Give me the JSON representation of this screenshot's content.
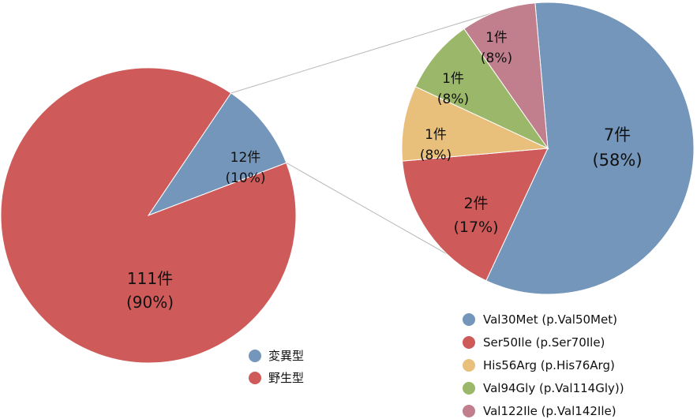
{
  "chart_data": [
    {
      "type": "pie",
      "title": "",
      "slices": [
        {
          "name": "変異型",
          "value": 12,
          "count_label": "12件",
          "pct_label": "(10%)",
          "color": "#7496BB"
        },
        {
          "name": "野生型",
          "value": 111,
          "count_label": "111件",
          "pct_label": "(90%)",
          "color": "#CF5A5A"
        }
      ],
      "legend": {
        "position": "bottom-right"
      }
    },
    {
      "type": "pie",
      "title": "",
      "slices": [
        {
          "name": "Val30Met (p.Val50Met)",
          "value": 7,
          "count_label": "7件",
          "pct_label": "(58%)",
          "color": "#7496BB"
        },
        {
          "name": "Ser50Ile (p.Ser70Ile)",
          "value": 2,
          "count_label": "2件",
          "pct_label": "(17%)",
          "color": "#CF5A5A"
        },
        {
          "name": "His56Arg (p.His76Arg)",
          "value": 1,
          "count_label": "1件",
          "pct_label": "(8%)",
          "color": "#E8C07C"
        },
        {
          "name": "Val94Gly (p.Val114Gly))",
          "value": 1,
          "count_label": "1件",
          "pct_label": "(8%)",
          "color": "#9BB86A"
        },
        {
          "name": "Val122Ile (p.Val142Ile)",
          "value": 1,
          "count_label": "1件",
          "pct_label": "(8%)",
          "color": "#C17E8C"
        }
      ],
      "legend": {
        "position": "bottom"
      }
    }
  ],
  "connector_color": "#b8b8b8"
}
